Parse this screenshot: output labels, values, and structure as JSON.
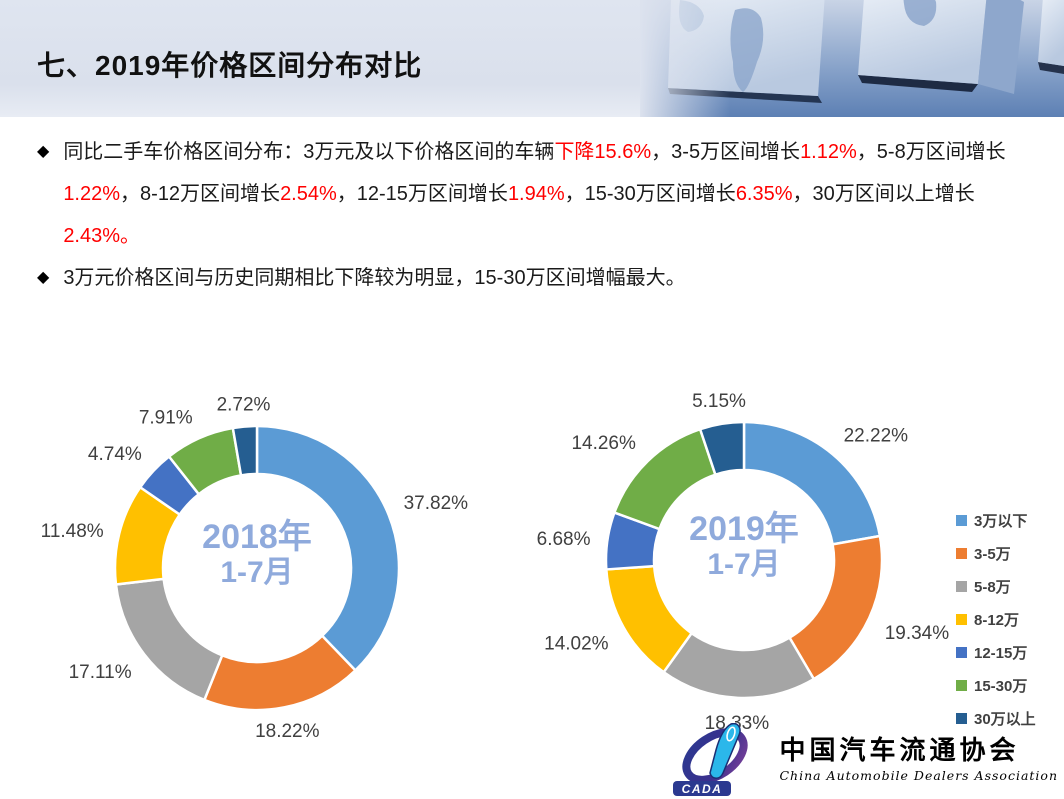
{
  "header": {
    "title": "七、2019年价格区间分布对比"
  },
  "bullets": {
    "marker": "◆",
    "b1_segments": [
      {
        "t": "同比二手车价格区间分布：3万元及以下价格区间的车辆",
        "red": false
      },
      {
        "t": "下降15.6%",
        "red": true
      },
      {
        "t": "，3-5万区间增长",
        "red": false
      },
      {
        "t": "1.12%",
        "red": true
      },
      {
        "t": "，5-8万区间增长",
        "red": false
      },
      {
        "t": "1.22%",
        "red": true
      },
      {
        "t": "，8-12万区间增长",
        "red": false
      },
      {
        "t": "2.54%",
        "red": true
      },
      {
        "t": "，12-15万区间增长",
        "red": false
      },
      {
        "t": "1.94%",
        "red": true
      },
      {
        "t": "，15-30万区间增长",
        "red": false
      },
      {
        "t": "6.35%",
        "red": true
      },
      {
        "t": "，30万区间以上增长",
        "red": false
      },
      {
        "t": "2.43%。",
        "red": true
      }
    ],
    "b2": "3万元价格区间与历史同期相比下降较为明显，15-30万区间增幅最大。"
  },
  "chart_data": [
    {
      "type": "pie",
      "subtype": "donut",
      "title": "2018年1-7月",
      "center_label": [
        "2018年",
        "1-7月"
      ],
      "categories": [
        "3万以下",
        "3-5万",
        "5-8万",
        "8-12万",
        "12-15万",
        "15-30万",
        "30万以上"
      ],
      "values": [
        37.82,
        18.22,
        17.11,
        11.48,
        4.74,
        7.91,
        2.72
      ],
      "labels": [
        "37.82%",
        "18.22%",
        "17.11%",
        "11.48%",
        "4.74%",
        "7.91%",
        "2.72%"
      ],
      "colors": [
        "#5B9BD5",
        "#ED7D31",
        "#A5A5A5",
        "#FFC000",
        "#4472C4",
        "#70AD47",
        "#255E91"
      ],
      "start_angle": 0,
      "direction": "clockwise",
      "legend_position": "none"
    },
    {
      "type": "pie",
      "subtype": "donut",
      "title": "2019年1-7月",
      "center_label": [
        "2019年",
        "1-7月"
      ],
      "categories": [
        "3万以下",
        "3-5万",
        "5-8万",
        "8-12万",
        "12-15万",
        "15-30万",
        "30万以上"
      ],
      "values": [
        22.22,
        19.34,
        18.33,
        14.02,
        6.68,
        14.26,
        5.15
      ],
      "labels": [
        "22.22%",
        "19.34%",
        "18.33%",
        "14.02%",
        "6.68%",
        "14.26%",
        "5.15%"
      ],
      "colors": [
        "#5B9BD5",
        "#ED7D31",
        "#A5A5A5",
        "#FFC000",
        "#4472C4",
        "#70AD47",
        "#255E91"
      ],
      "start_angle": 0,
      "direction": "clockwise",
      "legend_position": "right"
    }
  ],
  "legend": {
    "items": [
      {
        "label": "3万以下",
        "color": "#5B9BD5"
      },
      {
        "label": "3-5万",
        "color": "#ED7D31"
      },
      {
        "label": "5-8万",
        "color": "#A5A5A5"
      },
      {
        "label": "8-12万",
        "color": "#FFC000"
      },
      {
        "label": "12-15万",
        "color": "#4472C4"
      },
      {
        "label": "15-30万",
        "color": "#70AD47"
      },
      {
        "label": "30万以上",
        "color": "#255E91"
      }
    ]
  },
  "logo": {
    "cada": "CADA",
    "name_cn": "中国汽车流通协会",
    "name_en": "China Automobile Dealers Association"
  },
  "colors": {
    "accent_red": "#FF0000",
    "center_text": "#8FAADC",
    "label_text": "#404040",
    "header_bg": "#DAE0EC"
  }
}
